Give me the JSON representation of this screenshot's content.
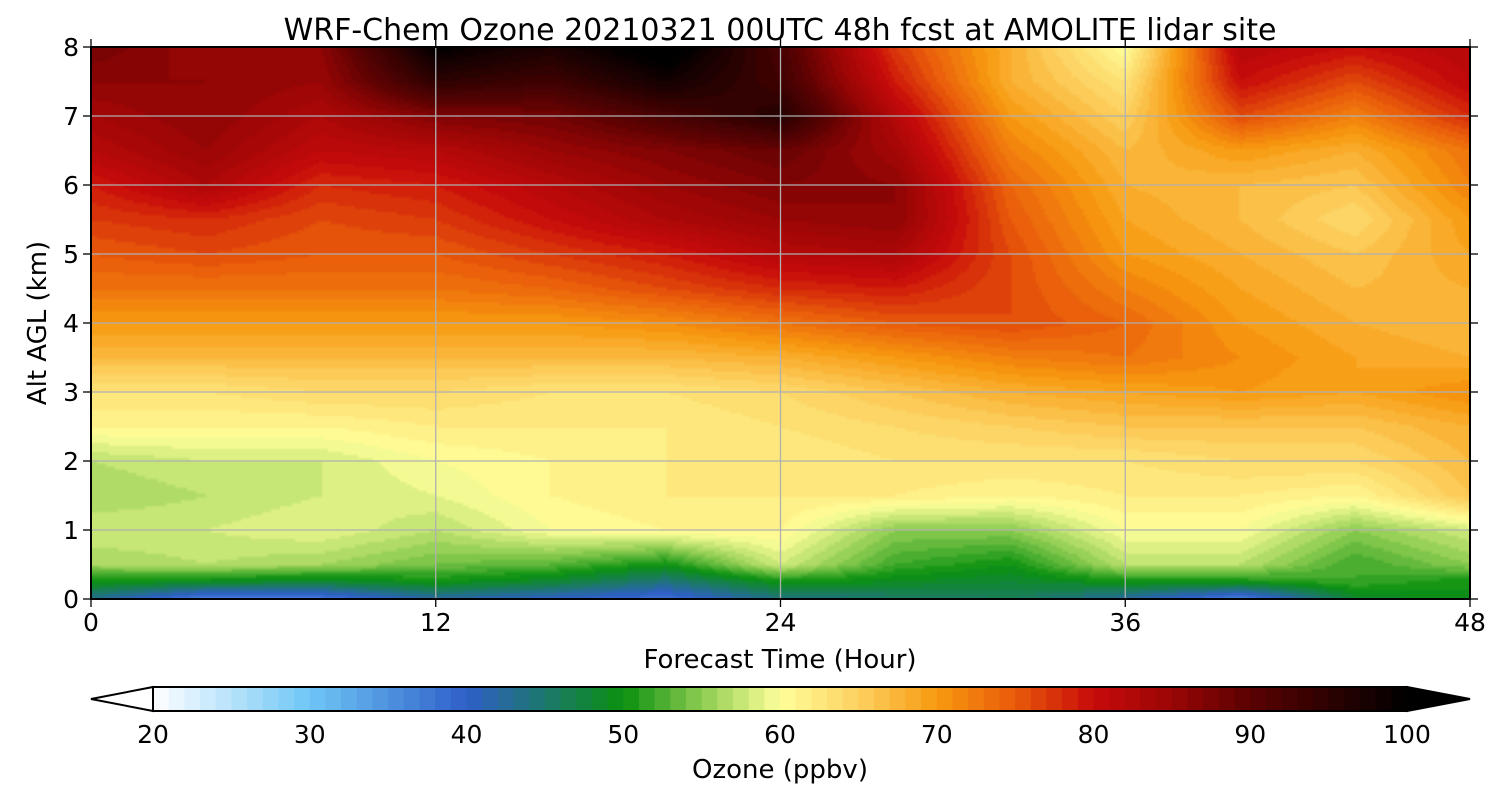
{
  "chart_data": {
    "type": "heatmap",
    "title": "WRF-Chem Ozone  20210321 00UTC 48h fcst at AMOLITE lidar site",
    "xlabel": "Forecast Time (Hour)",
    "ylabel": "Alt AGL (km)",
    "xlim": [
      0,
      48
    ],
    "ylim": [
      0,
      8
    ],
    "xticks": [
      0,
      12,
      24,
      36,
      48
    ],
    "yticks": [
      0,
      1,
      2,
      3,
      4,
      5,
      6,
      7,
      8
    ],
    "grid": true,
    "colorbar": {
      "label": "Ozone  (ppbv)",
      "orientation": "horizontal",
      "min": 20,
      "max": 100,
      "ticks": [
        20,
        30,
        40,
        50,
        60,
        70,
        80,
        90,
        100
      ],
      "extend": "both",
      "colormap_stops": [
        {
          "value": 20,
          "color": "#ffffff"
        },
        {
          "value": 30,
          "color": "#6ec6f5"
        },
        {
          "value": 40,
          "color": "#2f5fc8"
        },
        {
          "value": 50,
          "color": "#0a9010"
        },
        {
          "value": 55,
          "color": "#8ccc50"
        },
        {
          "value": 60,
          "color": "#ffff9a"
        },
        {
          "value": 65,
          "color": "#fcd060"
        },
        {
          "value": 70,
          "color": "#f79a10"
        },
        {
          "value": 75,
          "color": "#e85a0a"
        },
        {
          "value": 80,
          "color": "#c80a0a"
        },
        {
          "value": 85,
          "color": "#9a0505"
        },
        {
          "value": 90,
          "color": "#5a0202"
        },
        {
          "value": 100,
          "color": "#000000"
        }
      ]
    },
    "x": [
      0,
      4,
      8,
      12,
      16,
      20,
      24,
      28,
      32,
      36,
      40,
      44,
      48
    ],
    "y": [
      0,
      0.25,
      0.5,
      1,
      1.5,
      2,
      2.5,
      3,
      3.5,
      4,
      4.5,
      5,
      5.5,
      6,
      6.5,
      7,
      7.5,
      8
    ],
    "z": [
      [
        43,
        36,
        37,
        42,
        40,
        38,
        44,
        45,
        46,
        42,
        36,
        48,
        50
      ],
      [
        50,
        49,
        48,
        50,
        48,
        44,
        50,
        49,
        48,
        50,
        50,
        52,
        50
      ],
      [
        56,
        57,
        56,
        54,
        53,
        50,
        58,
        52,
        50,
        57,
        57,
        52,
        55
      ],
      [
        58,
        58,
        59,
        57,
        60,
        61,
        61,
        55,
        55,
        60,
        60,
        55,
        58
      ],
      [
        56,
        57,
        58,
        59,
        61,
        62,
        62,
        62,
        61,
        62,
        62,
        61,
        66
      ],
      [
        57,
        58,
        58,
        60,
        61,
        62,
        62,
        63,
        63,
        63,
        64,
        64,
        67
      ],
      [
        61,
        61,
        61,
        62,
        62,
        62,
        63,
        64,
        65,
        66,
        66,
        66,
        68
      ],
      [
        63,
        63,
        64,
        64,
        63,
        63,
        64,
        66,
        68,
        69,
        70,
        69,
        71
      ],
      [
        67,
        67,
        67,
        67,
        67,
        67,
        68,
        70,
        72,
        73,
        71,
        69,
        68
      ],
      [
        70,
        70,
        70,
        70,
        70,
        71,
        73,
        75,
        76,
        74,
        70,
        68,
        67
      ],
      [
        73,
        73,
        73,
        73,
        74,
        76,
        78,
        79,
        76,
        72,
        69,
        67,
        68
      ],
      [
        75,
        76,
        75,
        75,
        77,
        79,
        82,
        83,
        76,
        70,
        68,
        66,
        69
      ],
      [
        77,
        78,
        76,
        77,
        80,
        83,
        85,
        86,
        75,
        69,
        67,
        64,
        70
      ],
      [
        79,
        83,
        78,
        79,
        82,
        85,
        87,
        86,
        74,
        68,
        67,
        66,
        72
      ],
      [
        82,
        85,
        81,
        82,
        85,
        87,
        89,
        84,
        72,
        67,
        70,
        68,
        73
      ],
      [
        84,
        86,
        83,
        87,
        88,
        92,
        96,
        82,
        70,
        65,
        76,
        72,
        78
      ],
      [
        86,
        86,
        85,
        95,
        93,
        98,
        93,
        79,
        68,
        63,
        80,
        76,
        81
      ],
      [
        88,
        85,
        86,
        100,
        97,
        102,
        92,
        77,
        68,
        60,
        82,
        80,
        82
      ]
    ]
  }
}
